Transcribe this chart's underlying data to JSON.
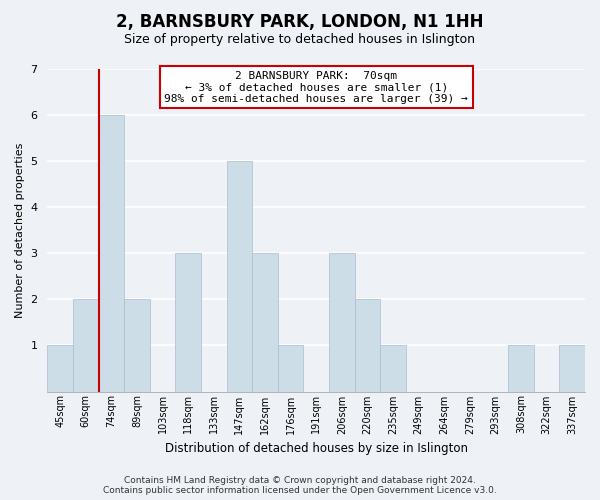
{
  "title": "2, BARNSBURY PARK, LONDON, N1 1HH",
  "subtitle": "Size of property relative to detached houses in Islington",
  "xlabel": "Distribution of detached houses by size in Islington",
  "ylabel": "Number of detached properties",
  "categories": [
    "45sqm",
    "60sqm",
    "74sqm",
    "89sqm",
    "103sqm",
    "118sqm",
    "133sqm",
    "147sqm",
    "162sqm",
    "176sqm",
    "191sqm",
    "206sqm",
    "220sqm",
    "235sqm",
    "249sqm",
    "264sqm",
    "279sqm",
    "293sqm",
    "308sqm",
    "322sqm",
    "337sqm"
  ],
  "values": [
    1,
    2,
    6,
    2,
    0,
    3,
    0,
    5,
    3,
    1,
    0,
    3,
    2,
    1,
    0,
    0,
    0,
    0,
    1,
    0,
    1
  ],
  "bar_color": "#ccdde8",
  "bar_edge_color": "#aabdd0",
  "highlight_color": "#cc0000",
  "annotation_text": "2 BARNSBURY PARK:  70sqm\n← 3% of detached houses are smaller (1)\n98% of semi-detached houses are larger (39) →",
  "annotation_box_color": "#ffffff",
  "annotation_box_edge": "#cc0000",
  "ylim": [
    0,
    7
  ],
  "yticks": [
    1,
    2,
    3,
    4,
    5,
    6,
    7
  ],
  "footer": "Contains HM Land Registry data © Crown copyright and database right 2024.\nContains public sector information licensed under the Open Government Licence v3.0.",
  "background_color": "#eef2f6",
  "plot_background": "#eef2f6",
  "grid_color": "#ffffff",
  "title_fontsize": 12,
  "subtitle_fontsize": 9
}
